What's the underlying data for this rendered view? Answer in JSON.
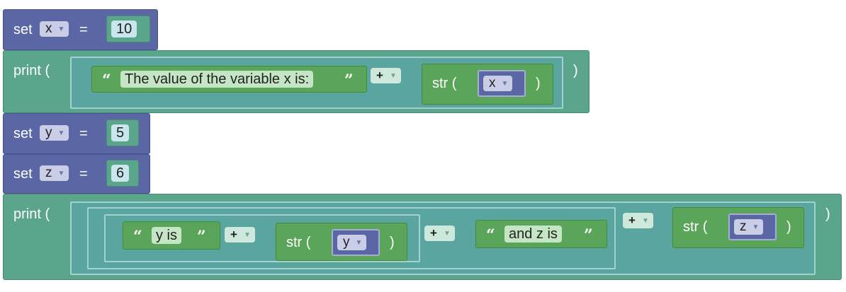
{
  "blocks": {
    "set_x": {
      "keyword": "set",
      "var": "x",
      "equals": "=",
      "value": "10"
    },
    "print1": {
      "keyword": "print (",
      "close": ")",
      "string": "The value of the variable x is:",
      "op": "+",
      "str_open": "str (",
      "str_var": "x",
      "str_close": ")"
    },
    "set_y": {
      "keyword": "set",
      "var": "y",
      "equals": "=",
      "value": "5"
    },
    "set_z": {
      "keyword": "set",
      "var": "z",
      "equals": "=",
      "value": "6"
    },
    "print2": {
      "keyword": "print (",
      "close": ")",
      "string1": "y is",
      "op1": "+",
      "str1_open": "str (",
      "str1_var": "y",
      "str1_close": ")",
      "op2": "+",
      "string2": "and z is",
      "op3": "+",
      "str2_open": "str (",
      "str2_var": "z",
      "str2_close": ")"
    }
  },
  "icons": {
    "quote_open": "“",
    "quote_close": "”",
    "dropdown_arrow": "▼"
  },
  "colors": {
    "variables": "#5b67a5",
    "print": "#5ba58c",
    "text": "#5ba55b"
  }
}
